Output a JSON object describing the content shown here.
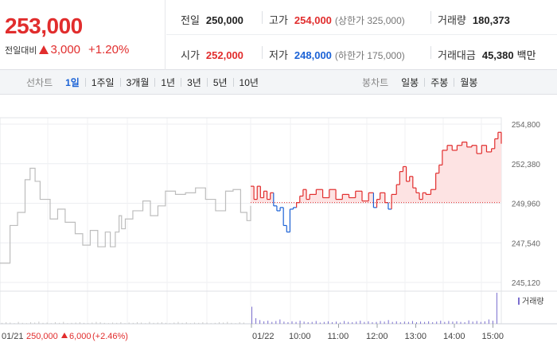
{
  "summary": {
    "current_price": "253,000",
    "change_label": "전일대비",
    "change_amount": "3,000",
    "change_percent": "+1.20%",
    "stats_row1": [
      {
        "label": "전일",
        "value": "250,000",
        "sub": ""
      },
      {
        "label": "고가",
        "value": "254,000",
        "sub": "(상한가 325,000)"
      },
      {
        "label": "거래량",
        "value": "180,373",
        "sub": ""
      }
    ],
    "stats_row2": [
      {
        "label": "시가",
        "value": "252,000",
        "sub": ""
      },
      {
        "label": "저가",
        "value": "248,000",
        "sub": "(하한가 175,000)"
      },
      {
        "label": "거래대금",
        "value": "45,380",
        "sub": "백만"
      }
    ]
  },
  "tabs": {
    "line_chart_title": "선차트",
    "line_periods": [
      "1일",
      "1주일",
      "3개월",
      "1년",
      "3년",
      "5년",
      "10년"
    ],
    "active_period": "1일",
    "candle_chart_title": "봉차트",
    "candle_periods": [
      "일봉",
      "주봉",
      "월봉"
    ]
  },
  "colors": {
    "up": "#e12d2d",
    "down": "#1b62d6",
    "prev_session_line": "#bdbdbd",
    "up_area": "#fde3e3",
    "volume_bar": "#7b6fcf"
  },
  "chart_data": {
    "type": "line",
    "y_ticks": [
      "254,800",
      "252,380",
      "249,960",
      "247,540",
      "245,120"
    ],
    "ylim": [
      245120,
      254800
    ],
    "baseline": 250000,
    "prev_session": {
      "date": "01/21",
      "close": "250,000",
      "change": "6,000",
      "change_percent": "(+2.46%)",
      "path": [
        [
          0,
          246300
        ],
        [
          0.08,
          248600
        ],
        [
          0.14,
          249400
        ],
        [
          0.2,
          251400
        ],
        [
          0.24,
          252100
        ],
        [
          0.28,
          251300
        ],
        [
          0.32,
          250200
        ],
        [
          0.4,
          249000
        ],
        [
          0.46,
          249600
        ],
        [
          0.52,
          248800
        ],
        [
          0.6,
          248100
        ],
        [
          0.66,
          247400
        ],
        [
          0.72,
          248300
        ],
        [
          0.78,
          247300
        ],
        [
          0.84,
          248200
        ],
        [
          0.88,
          247300
        ],
        [
          0.92,
          248200
        ],
        [
          0.95,
          249200
        ],
        [
          0.97,
          248400
        ],
        [
          1,
          249000
        ],
        [
          1.06,
          249500
        ],
        [
          1.14,
          250100
        ],
        [
          1.2,
          249200
        ],
        [
          1.26,
          249800
        ],
        [
          1.32,
          250700
        ],
        [
          1.4,
          250500
        ],
        [
          1.48,
          250600
        ],
        [
          1.56,
          250900
        ],
        [
          1.64,
          250200
        ],
        [
          1.72,
          249500
        ],
        [
          1.8,
          250700
        ],
        [
          1.86,
          250800
        ],
        [
          1.92,
          249400
        ],
        [
          1.97,
          248900
        ],
        [
          2,
          249800
        ]
      ]
    },
    "today": {
      "date": "01/22",
      "x": [
        "10:00",
        "11:00",
        "12:00",
        "13:00",
        "14:00",
        "15:00"
      ],
      "path": [
        [
          0,
          251000
        ],
        [
          0.04,
          250200
        ],
        [
          0.08,
          251000
        ],
        [
          0.12,
          250300
        ],
        [
          0.16,
          250700
        ],
        [
          0.2,
          250200
        ],
        [
          0.24,
          250600
        ],
        [
          0.28,
          249800
        ],
        [
          0.32,
          249500
        ],
        [
          0.36,
          249700
        ],
        [
          0.4,
          248600
        ],
        [
          0.44,
          248200
        ],
        [
          0.48,
          249600
        ],
        [
          0.52,
          249700
        ],
        [
          0.56,
          250000
        ],
        [
          0.6,
          250400
        ],
        [
          0.64,
          250800
        ],
        [
          0.68,
          250200
        ],
        [
          0.72,
          250500
        ],
        [
          0.8,
          250800
        ],
        [
          0.88,
          250300
        ],
        [
          0.96,
          250800
        ],
        [
          1.04,
          250200
        ],
        [
          1.12,
          250500
        ],
        [
          1.2,
          250300
        ],
        [
          1.28,
          250700
        ],
        [
          1.36,
          250100
        ],
        [
          1.44,
          250600
        ],
        [
          1.5,
          249700
        ],
        [
          1.54,
          250200
        ],
        [
          1.58,
          250600
        ],
        [
          1.64,
          250000
        ],
        [
          1.68,
          249600
        ],
        [
          1.72,
          250500
        ],
        [
          1.78,
          251100
        ],
        [
          1.82,
          251900
        ],
        [
          1.86,
          252200
        ],
        [
          1.9,
          251300
        ],
        [
          1.94,
          251600
        ],
        [
          1.98,
          250900
        ],
        [
          2.02,
          250600
        ],
        [
          2.06,
          250200
        ],
        [
          2.1,
          250600
        ],
        [
          2.14,
          250500
        ],
        [
          2.2,
          250800
        ],
        [
          2.26,
          251800
        ],
        [
          2.3,
          252300
        ],
        [
          2.34,
          253200
        ],
        [
          2.4,
          253500
        ],
        [
          2.46,
          253200
        ],
        [
          2.52,
          253500
        ],
        [
          2.58,
          253700
        ],
        [
          2.64,
          253400
        ],
        [
          2.7,
          253500
        ],
        [
          2.76,
          253000
        ],
        [
          2.82,
          253500
        ],
        [
          2.88,
          253100
        ],
        [
          2.94,
          253300
        ],
        [
          2.98,
          253900
        ],
        [
          3.02,
          254300
        ],
        [
          3.06,
          253600
        ]
      ]
    },
    "volume": {
      "legend": "거래량",
      "bars": [
        0.03,
        0.05,
        0.04,
        0.02,
        0.06,
        0.03,
        0.02,
        0.05,
        0.04,
        0.07,
        0.03,
        0.04,
        0.02,
        0.05,
        0.03,
        0.06,
        0.02,
        0.03,
        0.04,
        0.05,
        0.03,
        0.02,
        0.04,
        0.06,
        0.05,
        0.03,
        0.02,
        0.04,
        0.03,
        0.05,
        0.02,
        0.04,
        0.03,
        0.05,
        0.04,
        0.02,
        0.06,
        0.03,
        0.04,
        0.05,
        0.03,
        0.02,
        0.04,
        0.06,
        0.03,
        0.05,
        0.02,
        0.04,
        0.03,
        0.05,
        0.04,
        0.02,
        0.03,
        0.05,
        0.04,
        0.06,
        0.03,
        0.02,
        0.05,
        0.04
      ],
      "today_bars": [
        0.55,
        0.18,
        0.12,
        0.08,
        0.1,
        0.06,
        0.09,
        0.14,
        0.07,
        0.05,
        0.08,
        0.06,
        0.1,
        0.07,
        0.05,
        0.06,
        0.09,
        0.04,
        0.06,
        0.08,
        0.05,
        0.07,
        0.04,
        0.09,
        0.06,
        0.05,
        0.07,
        0.1,
        0.06,
        0.08,
        0.05,
        0.06,
        0.09,
        0.07,
        0.12,
        0.06,
        0.08,
        0.05,
        0.07,
        0.06,
        0.09,
        0.05,
        0.07,
        0.06,
        0.08,
        0.05,
        0.07,
        0.1,
        0.06,
        0.09,
        0.07,
        0.08,
        0.06,
        0.05,
        0.11,
        0.07,
        0.09,
        0.06,
        0.08,
        0.14,
        0.1,
        1.0
      ]
    }
  }
}
